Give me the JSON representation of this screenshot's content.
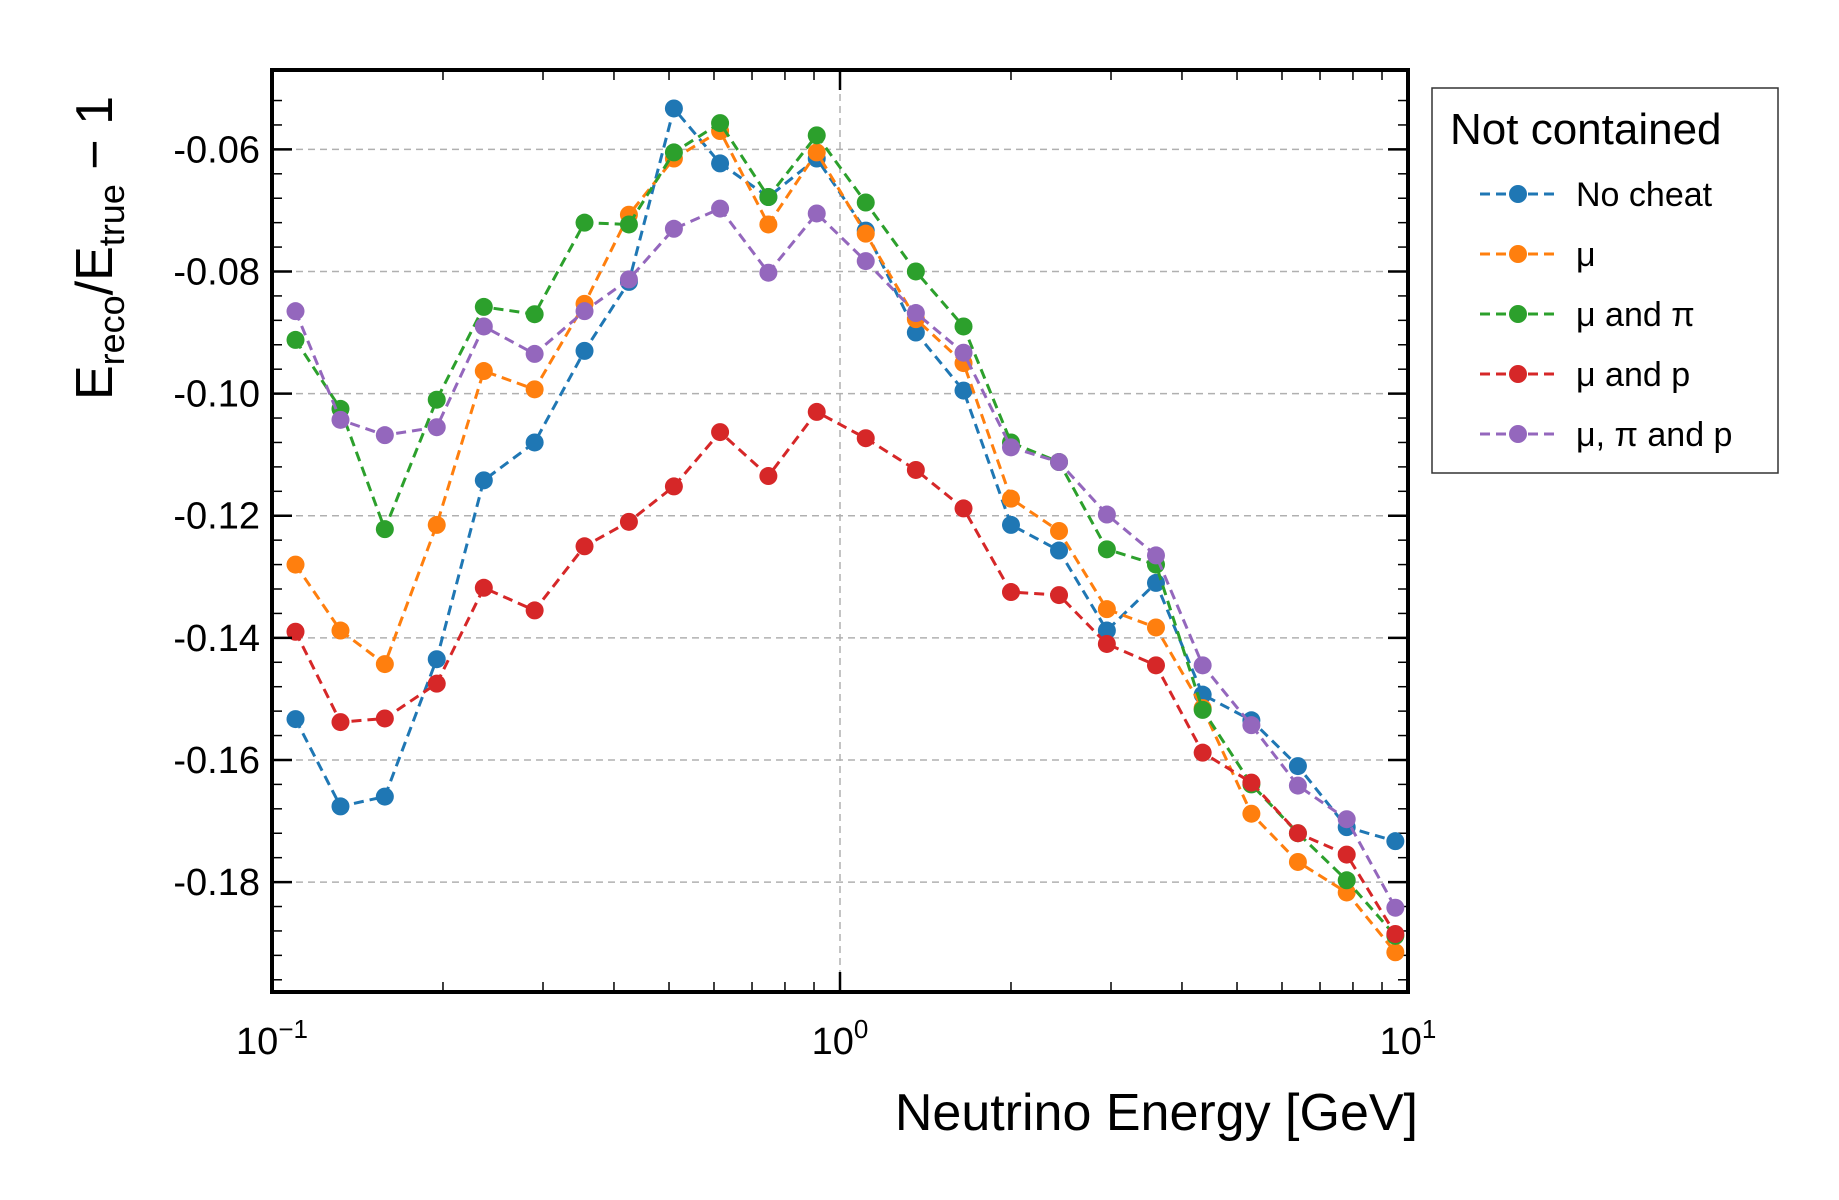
{
  "chart_data": {
    "type": "line",
    "xlabel": "Neutrino Energy [GeV]",
    "ylabel": {
      "base": "E",
      "sub1": "reco",
      "mid": "/E",
      "sub2": "true",
      "tail": " − 1"
    },
    "xscale": "log",
    "xlim": [
      0.1,
      10
    ],
    "ylim": [
      -0.198,
      -0.047
    ],
    "x_ticks": [
      {
        "value": 0.1,
        "base": "10",
        "exp": "−1"
      },
      {
        "value": 1,
        "base": "10",
        "exp": "0"
      },
      {
        "value": 10,
        "base": "10",
        "exp": "1"
      }
    ],
    "y_ticks": [
      {
        "value": -0.06,
        "label": "-0.06"
      },
      {
        "value": -0.08,
        "label": "-0.08"
      },
      {
        "value": -0.1,
        "label": "-0.10"
      },
      {
        "value": -0.12,
        "label": "-0.12"
      },
      {
        "value": -0.14,
        "label": "-0.14"
      },
      {
        "value": -0.16,
        "label": "-0.16"
      },
      {
        "value": -0.18,
        "label": "-0.18"
      }
    ],
    "grid": true,
    "legend": {
      "title": "Not contained",
      "placement": "outside-top-right"
    },
    "x": [
      0.11,
      0.132,
      0.158,
      0.195,
      0.236,
      0.29,
      0.355,
      0.425,
      0.51,
      0.615,
      0.748,
      0.91,
      1.11,
      1.36,
      1.65,
      2.0,
      2.43,
      2.95,
      3.6,
      4.35,
      5.3,
      6.4,
      7.8,
      9.5
    ],
    "series": [
      {
        "name": "No cheat",
        "color": "#1f77b4",
        "values": [
          -0.1533,
          -0.1676,
          -0.166,
          -0.1435,
          -0.1142,
          -0.108,
          -0.093,
          -0.0817,
          -0.0533,
          -0.0623,
          -0.0678,
          -0.0615,
          -0.0733,
          -0.09,
          -0.0995,
          -0.1215,
          -0.1257,
          -0.1388,
          -0.131,
          -0.1493,
          -0.1535,
          -0.161,
          -0.171,
          -0.1733
        ]
      },
      {
        "name": "μ",
        "color": "#ff7f0e",
        "values": [
          -0.128,
          -0.1388,
          -0.1443,
          -0.1215,
          -0.0963,
          -0.0993,
          -0.0853,
          -0.0707,
          -0.0615,
          -0.057,
          -0.0723,
          -0.0605,
          -0.0738,
          -0.0878,
          -0.095,
          -0.1172,
          -0.1225,
          -0.1353,
          -0.1383,
          -0.1515,
          -0.1688,
          -0.1767,
          -0.1817,
          -0.1915
        ]
      },
      {
        "name": "μ and π",
        "color": "#2ca02c",
        "values": [
          -0.0912,
          -0.1025,
          -0.1222,
          -0.101,
          -0.0858,
          -0.087,
          -0.072,
          -0.0723,
          -0.0605,
          -0.0557,
          -0.0678,
          -0.0577,
          -0.0687,
          -0.08,
          -0.089,
          -0.108,
          -0.1112,
          -0.1255,
          -0.128,
          -0.1518,
          -0.164,
          -0.172,
          -0.1797,
          -0.1888
        ]
      },
      {
        "name": "μ and p",
        "color": "#d62728",
        "values": [
          -0.139,
          -0.1538,
          -0.1532,
          -0.1475,
          -0.1318,
          -0.1355,
          -0.125,
          -0.121,
          -0.1152,
          -0.1063,
          -0.1135,
          -0.103,
          -0.1073,
          -0.1125,
          -0.1188,
          -0.1325,
          -0.133,
          -0.141,
          -0.1445,
          -0.1588,
          -0.1637,
          -0.172,
          -0.1755,
          -0.1885
        ]
      },
      {
        "name": "μ, π and p",
        "color": "#9467bd",
        "values": [
          -0.0865,
          -0.1043,
          -0.1068,
          -0.1055,
          -0.089,
          -0.0935,
          -0.0865,
          -0.0813,
          -0.073,
          -0.0697,
          -0.0802,
          -0.0705,
          -0.0783,
          -0.0868,
          -0.0933,
          -0.1088,
          -0.1112,
          -0.1198,
          -0.1265,
          -0.1445,
          -0.1543,
          -0.1642,
          -0.1697,
          -0.1842
        ]
      }
    ]
  }
}
